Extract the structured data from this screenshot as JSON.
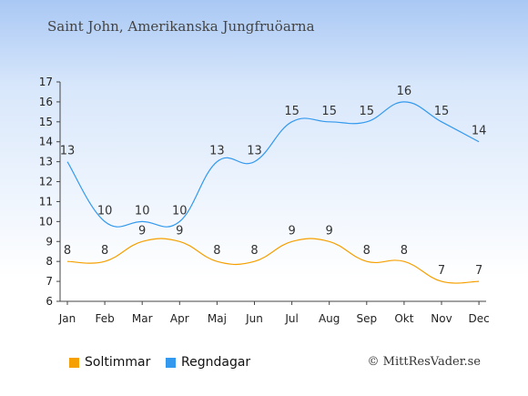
{
  "header": {
    "title": "Saint John, Amerikanska Jungfruöarna"
  },
  "footer": {
    "credit": "© MittResVader.se"
  },
  "chart_data": {
    "type": "line",
    "categories": [
      "Jan",
      "Feb",
      "Mar",
      "Apr",
      "Maj",
      "Jun",
      "Jul",
      "Aug",
      "Sep",
      "Okt",
      "Nov",
      "Dec"
    ],
    "ylim": [
      6,
      17
    ],
    "yticks": [
      "6",
      "7",
      "8",
      "9",
      "10",
      "11",
      "12",
      "13",
      "14",
      "15",
      "16",
      "17"
    ],
    "grid": false,
    "legend_position": "bottom",
    "series": [
      {
        "name": "Soltimmar",
        "color": "#f5a000",
        "values": [
          8,
          8,
          9,
          9,
          8,
          8,
          9,
          9,
          8,
          8,
          7,
          7
        ]
      },
      {
        "name": "Regndagar",
        "color": "#3399ee",
        "values": [
          13,
          10,
          10,
          10,
          13,
          13,
          15,
          15,
          15,
          16,
          15,
          14
        ]
      }
    ]
  }
}
